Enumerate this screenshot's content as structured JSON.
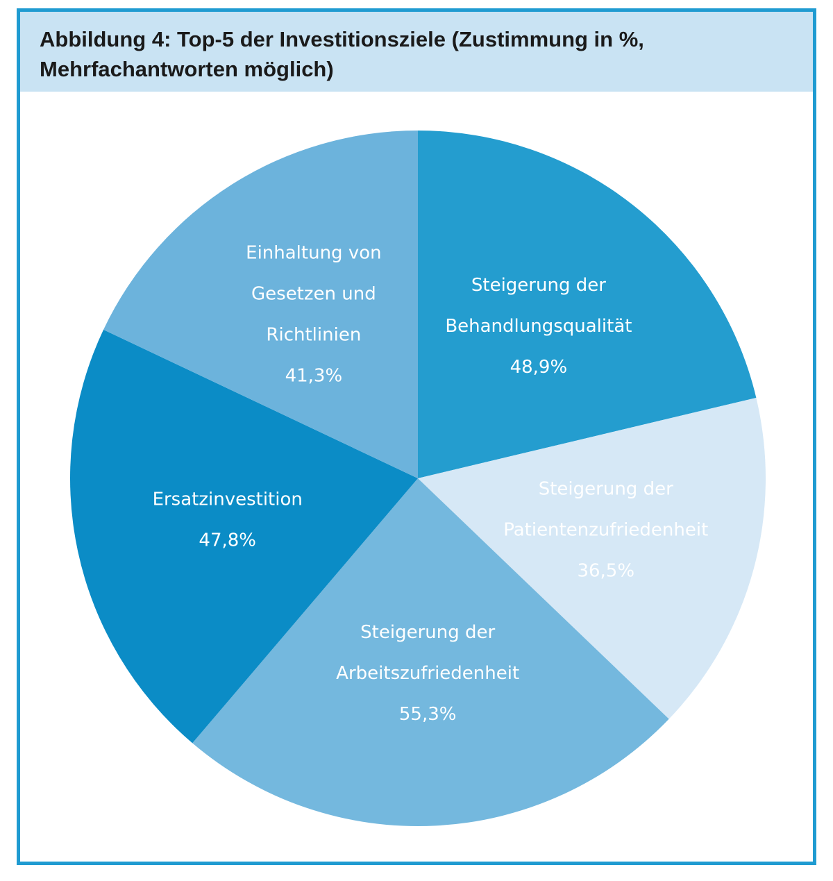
{
  "header": {
    "title_line1": "Abbildung 4: Top-5 der Investitionsziele (Zustimmung in %,",
    "title_line2": "Mehrfachantworten möglich)"
  },
  "chart_data": {
    "type": "pie",
    "title": "Abbildung 4: Top-5 der Investitionsziele (Zustimmung in %, Mehrfachantworten möglich)",
    "slices": [
      {
        "label_lines": [
          "Steigerung der",
          "Behandlungsqualität"
        ],
        "value_label": "48,9%",
        "value": 48.9,
        "color": "#249dcf"
      },
      {
        "label_lines": [
          "Steigerung der",
          "Patientenzufriedenheit"
        ],
        "value_label": "36,5%",
        "value": 36.5,
        "color": "#d6e8f6"
      },
      {
        "label_lines": [
          "Steigerung der",
          "Arbeitszufriedenheit"
        ],
        "value_label": "55,3%",
        "value": 55.3,
        "color": "#74b8de"
      },
      {
        "label_lines": [
          "Ersatzinvestition"
        ],
        "value_label": "47,8%",
        "value": 47.8,
        "color": "#0b8cc6"
      },
      {
        "label_lines": [
          "Einhaltung von",
          "Gesetzen und",
          "Richtlinien"
        ],
        "value_label": "41,3%",
        "value": 41.3,
        "color": "#6cb3dc"
      }
    ]
  }
}
